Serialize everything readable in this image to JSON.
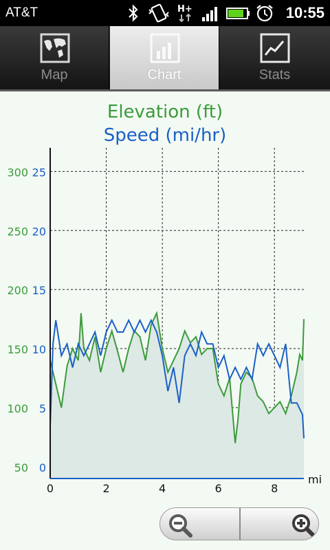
{
  "status_bar": {
    "carrier": "AT&T",
    "time": "10:55",
    "icons": [
      "bluetooth-icon",
      "vibrate-icon",
      "hplus-data-icon",
      "signal-icon",
      "battery-icon",
      "alarm-icon"
    ]
  },
  "tabs": [
    {
      "label": "Map",
      "icon": "map-icon",
      "selected": false
    },
    {
      "label": "Chart",
      "icon": "chart-icon",
      "selected": true
    },
    {
      "label": "Stats",
      "icon": "stats-icon",
      "selected": false
    }
  ],
  "colors": {
    "elevation": "#3c9a3c",
    "speed": "#1a5fc8",
    "fill": "#dde9e4"
  },
  "chart_data": {
    "type": "line",
    "title_elevation": "Elevation (ft)",
    "title_speed": "Speed (mi/hr)",
    "x_unit": "mi",
    "x_ticks": [
      "0",
      "2",
      "4",
      "6",
      "8"
    ],
    "xlim": [
      0,
      9.05
    ],
    "y_elev_ticks": [
      "300",
      "250",
      "200",
      "150",
      "100",
      "50"
    ],
    "y_speed_ticks": [
      "25",
      "20",
      "15",
      "10",
      "5",
      "0"
    ],
    "y_elev_lim": [
      40,
      320
    ],
    "y_speed_lim": [
      -1.4,
      26.6
    ],
    "grid": true,
    "series": [
      {
        "name": "Elevation (ft)",
        "area": true,
        "x": [
          0,
          0.2,
          0.4,
          0.6,
          0.8,
          1.0,
          1.1,
          1.2,
          1.4,
          1.6,
          1.8,
          2.0,
          2.2,
          2.4,
          2.6,
          2.8,
          3.0,
          3.2,
          3.4,
          3.6,
          3.8,
          4.0,
          4.2,
          4.4,
          4.6,
          4.8,
          5.0,
          5.2,
          5.4,
          5.6,
          5.8,
          6.0,
          6.2,
          6.4,
          6.6,
          6.7,
          6.8,
          7.0,
          7.2,
          7.4,
          7.6,
          7.8,
          8.0,
          8.2,
          8.4,
          8.6,
          8.8,
          8.9,
          9.0,
          9.05
        ],
        "values": [
          140,
          120,
          100,
          135,
          150,
          140,
          180,
          150,
          140,
          160,
          130,
          150,
          165,
          148,
          130,
          150,
          165,
          160,
          140,
          170,
          180,
          150,
          130,
          140,
          150,
          165,
          155,
          160,
          145,
          150,
          150,
          120,
          110,
          125,
          70,
          90,
          120,
          130,
          125,
          110,
          105,
          95,
          100,
          105,
          95,
          110,
          130,
          145,
          140,
          175
        ]
      },
      {
        "name": "Speed (mi/hr)",
        "area": false,
        "x": [
          0,
          0.1,
          0.2,
          0.4,
          0.6,
          0.8,
          1.0,
          1.2,
          1.4,
          1.6,
          1.8,
          2.0,
          2.2,
          2.4,
          2.6,
          2.8,
          3.0,
          3.2,
          3.4,
          3.6,
          3.8,
          4.0,
          4.2,
          4.4,
          4.6,
          4.8,
          5.0,
          5.2,
          5.4,
          5.6,
          5.8,
          6.0,
          6.2,
          6.4,
          6.6,
          6.8,
          7.0,
          7.2,
          7.4,
          7.6,
          7.8,
          8.0,
          8.2,
          8.4,
          8.6,
          8.8,
          9.0,
          9.05
        ],
        "values": [
          3,
          10,
          12,
          9,
          10,
          8,
          10,
          9,
          10,
          11,
          9,
          11,
          12,
          11,
          11,
          12,
          11,
          12,
          11,
          12,
          11,
          9,
          6,
          8,
          5,
          9,
          10,
          9,
          11,
          10,
          10,
          8,
          9,
          7,
          8,
          7,
          8,
          7,
          10,
          9,
          10,
          9,
          8,
          10,
          5,
          5,
          4,
          2
        ]
      }
    ]
  }
}
